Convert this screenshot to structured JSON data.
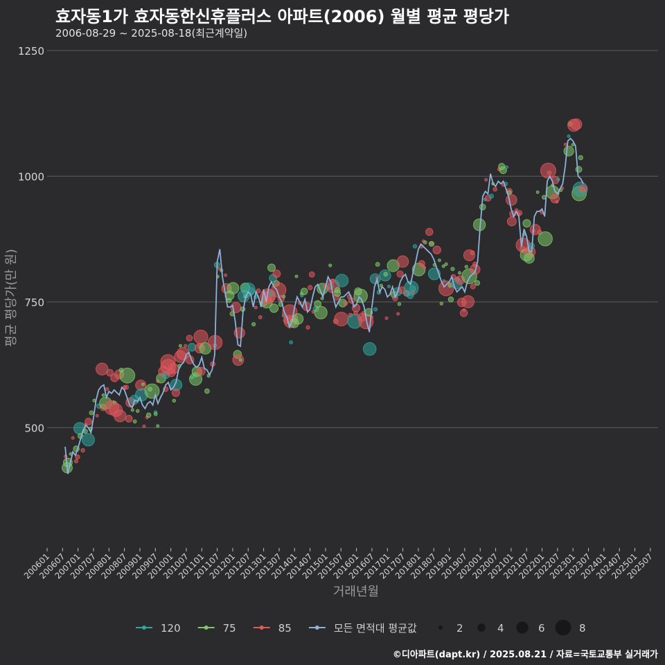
{
  "title": "효자동1가 효자동한신휴플러스 아파트(2006) 월별 평균 평당가",
  "subtitle": "2006-08-29 ~ 2025-08-18(최근계약일)",
  "credit": "©디아파트(dapt.kr) / 2025.08.21 / 자료=국토교통부 실거래가",
  "colors": {
    "background": "#2b2a2c",
    "grid": "#5e5e5e",
    "120": "#2fa59f",
    "75": "#7ec86a",
    "85": "#e2585c",
    "mean": "#8fb2dc"
  },
  "chart_data": {
    "type": "scatter",
    "xlabel": "거래년월",
    "ylabel": "평균 평당가(만 원)",
    "ylim": [
      265,
      1265
    ],
    "yticks": [
      500,
      750,
      1000,
      1250
    ],
    "xlim": [
      "2006-01",
      "2025-10"
    ],
    "xticks": [
      "200601",
      "200607",
      "200701",
      "200707",
      "200801",
      "200807",
      "200901",
      "200907",
      "201001",
      "201007",
      "201101",
      "201107",
      "201201",
      "201207",
      "201301",
      "201307",
      "201401",
      "201407",
      "201501",
      "201507",
      "201601",
      "201607",
      "201701",
      "201707",
      "201801",
      "201807",
      "201901",
      "201907",
      "202001",
      "202007",
      "202101",
      "202107",
      "202201",
      "202207",
      "202301",
      "202307",
      "202401",
      "202407",
      "202501",
      "202507"
    ],
    "legend_color_entries": [
      "120",
      "75",
      "85",
      "모든 면적대 평균값"
    ],
    "legend_size_entries": [
      2,
      4,
      6,
      8
    ],
    "legend_position": "bottom",
    "mean_line": [
      [
        "2006-08",
        462
      ],
      [
        "2006-09",
        408
      ],
      [
        "2006-10",
        430
      ],
      [
        "2006-11",
        452
      ],
      [
        "2006-12",
        445
      ],
      [
        "2007-01",
        460
      ],
      [
        "2007-02",
        478
      ],
      [
        "2007-03",
        495
      ],
      [
        "2007-04",
        505
      ],
      [
        "2007-05",
        500
      ],
      [
        "2007-06",
        490
      ],
      [
        "2007-07",
        520
      ],
      [
        "2007-08",
        555
      ],
      [
        "2007-09",
        575
      ],
      [
        "2007-10",
        582
      ],
      [
        "2007-11",
        585
      ],
      [
        "2007-12",
        560
      ],
      [
        "2008-01",
        572
      ],
      [
        "2008-02",
        568
      ],
      [
        "2008-03",
        575
      ],
      [
        "2008-04",
        570
      ],
      [
        "2008-05",
        565
      ],
      [
        "2008-06",
        580
      ],
      [
        "2008-07",
        575
      ],
      [
        "2008-08",
        560
      ],
      [
        "2008-09",
        545
      ],
      [
        "2008-10",
        540
      ],
      [
        "2008-11",
        555
      ],
      [
        "2008-12",
        552
      ],
      [
        "2009-01",
        560
      ],
      [
        "2009-02",
        545
      ],
      [
        "2009-03",
        538
      ],
      [
        "2009-04",
        548
      ],
      [
        "2009-05",
        552
      ],
      [
        "2009-06",
        545
      ],
      [
        "2009-07",
        565
      ],
      [
        "2009-08",
        548
      ],
      [
        "2009-09",
        560
      ],
      [
        "2009-10",
        570
      ],
      [
        "2009-11",
        585
      ],
      [
        "2009-12",
        590
      ],
      [
        "2010-01",
        575
      ],
      [
        "2010-02",
        580
      ],
      [
        "2010-03",
        590
      ],
      [
        "2010-04",
        615
      ],
      [
        "2010-05",
        625
      ],
      [
        "2010-06",
        630
      ],
      [
        "2010-07",
        645
      ],
      [
        "2010-08",
        650
      ],
      [
        "2010-09",
        635
      ],
      [
        "2010-10",
        625
      ],
      [
        "2010-11",
        620
      ],
      [
        "2010-12",
        625
      ],
      [
        "2011-01",
        640
      ],
      [
        "2011-02",
        618
      ],
      [
        "2011-03",
        615
      ],
      [
        "2011-04",
        605
      ],
      [
        "2011-05",
        615
      ],
      [
        "2011-06",
        645
      ],
      [
        "2011-07",
        830
      ],
      [
        "2011-08",
        855
      ],
      [
        "2011-09",
        800
      ],
      [
        "2011-10",
        770
      ],
      [
        "2011-11",
        740
      ],
      [
        "2011-12",
        740
      ],
      [
        "2012-01",
        743
      ],
      [
        "2012-02",
        710
      ],
      [
        "2012-03",
        665
      ],
      [
        "2012-04",
        662
      ],
      [
        "2012-05",
        730
      ],
      [
        "2012-06",
        760
      ],
      [
        "2012-07",
        770
      ],
      [
        "2012-08",
        765
      ],
      [
        "2012-09",
        740
      ],
      [
        "2012-10",
        770
      ],
      [
        "2012-11",
        760
      ],
      [
        "2012-12",
        740
      ],
      [
        "2013-01",
        775
      ],
      [
        "2013-02",
        750
      ],
      [
        "2013-03",
        780
      ],
      [
        "2013-04",
        790
      ],
      [
        "2013-05",
        780
      ],
      [
        "2013-06",
        775
      ],
      [
        "2013-07",
        760
      ],
      [
        "2013-08",
        750
      ],
      [
        "2013-09",
        730
      ],
      [
        "2013-10",
        720
      ],
      [
        "2013-11",
        700
      ],
      [
        "2013-12",
        710
      ],
      [
        "2014-01",
        740
      ],
      [
        "2014-02",
        760
      ],
      [
        "2014-03",
        750
      ],
      [
        "2014-04",
        740
      ],
      [
        "2014-05",
        755
      ],
      [
        "2014-06",
        730
      ],
      [
        "2014-07",
        735
      ],
      [
        "2014-08",
        760
      ],
      [
        "2014-09",
        780
      ],
      [
        "2014-10",
        785
      ],
      [
        "2014-11",
        772
      ],
      [
        "2014-12",
        760
      ],
      [
        "2015-01",
        780
      ],
      [
        "2015-02",
        800
      ],
      [
        "2015-03",
        790
      ],
      [
        "2015-04",
        760
      ],
      [
        "2015-05",
        740
      ],
      [
        "2015-06",
        750
      ],
      [
        "2015-07",
        760
      ],
      [
        "2015-08",
        760
      ],
      [
        "2015-09",
        765
      ],
      [
        "2015-10",
        770
      ],
      [
        "2015-11",
        758
      ],
      [
        "2015-12",
        740
      ],
      [
        "2016-01",
        745
      ],
      [
        "2016-02",
        760
      ],
      [
        "2016-03",
        755
      ],
      [
        "2016-04",
        740
      ],
      [
        "2016-05",
        710
      ],
      [
        "2016-06",
        690
      ],
      [
        "2016-07",
        740
      ],
      [
        "2016-08",
        780
      ],
      [
        "2016-09",
        795
      ],
      [
        "2016-10",
        770
      ],
      [
        "2016-11",
        780
      ],
      [
        "2016-12",
        775
      ],
      [
        "2017-01",
        760
      ],
      [
        "2017-02",
        765
      ],
      [
        "2017-03",
        780
      ],
      [
        "2017-04",
        760
      ],
      [
        "2017-05",
        770
      ],
      [
        "2017-06",
        790
      ],
      [
        "2017-07",
        800
      ],
      [
        "2017-08",
        805
      ],
      [
        "2017-09",
        790
      ],
      [
        "2017-10",
        785
      ],
      [
        "2017-11",
        810
      ],
      [
        "2017-12",
        830
      ],
      [
        "2018-01",
        855
      ],
      [
        "2018-02",
        865
      ],
      [
        "2018-03",
        860
      ],
      [
        "2018-04",
        855
      ],
      [
        "2018-05",
        850
      ],
      [
        "2018-06",
        845
      ],
      [
        "2018-07",
        835
      ],
      [
        "2018-08",
        820
      ],
      [
        "2018-09",
        805
      ],
      [
        "2018-10",
        790
      ],
      [
        "2018-11",
        780
      ],
      [
        "2018-12",
        785
      ],
      [
        "2019-01",
        790
      ],
      [
        "2019-02",
        800
      ],
      [
        "2019-03",
        780
      ],
      [
        "2019-04",
        770
      ],
      [
        "2019-05",
        775
      ],
      [
        "2019-06",
        780
      ],
      [
        "2019-07",
        770
      ],
      [
        "2019-08",
        790
      ],
      [
        "2019-09",
        800
      ],
      [
        "2019-10",
        805
      ],
      [
        "2019-11",
        810
      ],
      [
        "2019-12",
        830
      ],
      [
        "2020-01",
        900
      ],
      [
        "2020-02",
        960
      ],
      [
        "2020-03",
        970
      ],
      [
        "2020-04",
        965
      ],
      [
        "2020-05",
        1005
      ],
      [
        "2020-06",
        985
      ],
      [
        "2020-07",
        980
      ],
      [
        "2020-08",
        990
      ],
      [
        "2020-09",
        985
      ],
      [
        "2020-10",
        990
      ],
      [
        "2020-11",
        975
      ],
      [
        "2020-12",
        960
      ],
      [
        "2021-01",
        935
      ],
      [
        "2021-02",
        920
      ],
      [
        "2021-03",
        930
      ],
      [
        "2021-04",
        920
      ],
      [
        "2021-05",
        860
      ],
      [
        "2021-06",
        895
      ],
      [
        "2021-07",
        880
      ],
      [
        "2021-08",
        850
      ],
      [
        "2021-09",
        850
      ],
      [
        "2021-10",
        920
      ],
      [
        "2021-11",
        930
      ],
      [
        "2021-12",
        930
      ],
      [
        "2022-01",
        935
      ],
      [
        "2022-02",
        920
      ],
      [
        "2022-03",
        990
      ],
      [
        "2022-04",
        1000
      ],
      [
        "2022-05",
        990
      ],
      [
        "2022-06",
        970
      ],
      [
        "2022-07",
        965
      ],
      [
        "2022-08",
        975
      ],
      [
        "2022-09",
        985
      ],
      [
        "2022-10",
        1020
      ],
      [
        "2022-11",
        1070
      ],
      [
        "2022-12",
        1075
      ],
      [
        "2023-01",
        1070
      ],
      [
        "2023-02",
        1060
      ],
      [
        "2023-03",
        1000
      ],
      [
        "2023-04",
        995
      ],
      [
        "2023-05",
        985
      ]
    ]
  }
}
